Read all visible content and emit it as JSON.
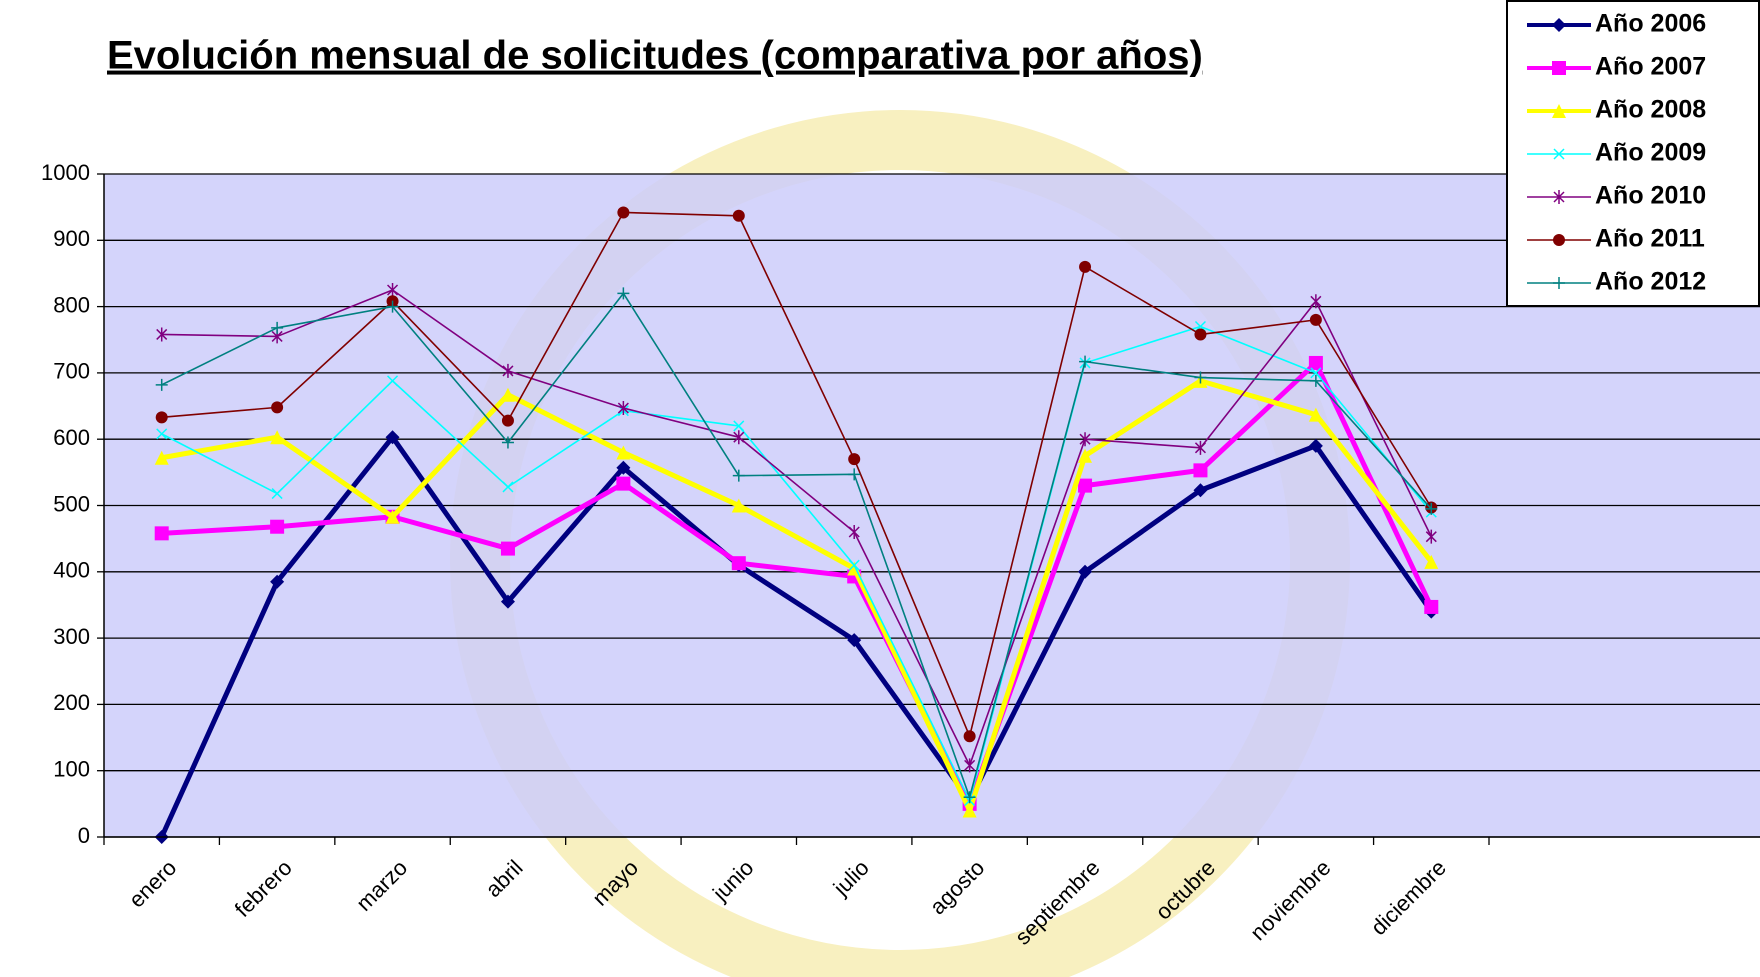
{
  "chart_data": {
    "type": "line",
    "title": "Evolución mensual de solicitudes (comparativa por años)",
    "categories": [
      "enero",
      "febrero",
      "marzo",
      "abril",
      "mayo",
      "junio",
      "julio",
      "agosto",
      "septiembre",
      "octubre",
      "noviembre",
      "diciembre"
    ],
    "series": [
      {
        "name": "Año 2006",
        "color": "#000080",
        "marker": "diamond",
        "line_width": 5,
        "values": [
          0,
          385,
          603,
          355,
          557,
          410,
          297,
          55,
          400,
          523,
          590,
          340
        ]
      },
      {
        "name": "Año 2007",
        "color": "#ff00ff",
        "marker": "square",
        "line_width": 5,
        "values": [
          458,
          468,
          483,
          435,
          533,
          413,
          393,
          50,
          530,
          553,
          715,
          347
        ]
      },
      {
        "name": "Año 2008",
        "color": "#ffff00",
        "marker": "triangle",
        "line_width": 5,
        "values": [
          572,
          603,
          483,
          667,
          580,
          500,
          405,
          40,
          575,
          688,
          637,
          415
        ]
      },
      {
        "name": "Año 2009",
        "color": "#00ffff",
        "marker": "x",
        "line_width": 1.6,
        "values": [
          608,
          518,
          688,
          528,
          643,
          620,
          410,
          55,
          715,
          770,
          700,
          490
        ]
      },
      {
        "name": "Año 2010",
        "color": "#800080",
        "marker": "star",
        "line_width": 1.6,
        "values": [
          758,
          755,
          825,
          703,
          647,
          603,
          460,
          108,
          600,
          587,
          808,
          453
        ]
      },
      {
        "name": "Año 2011",
        "color": "#800000",
        "marker": "circle",
        "line_width": 1.6,
        "values": [
          633,
          648,
          808,
          628,
          942,
          937,
          570,
          152,
          860,
          758,
          780,
          497
        ]
      },
      {
        "name": "Año 2012",
        "color": "#008080",
        "marker": "plus",
        "line_width": 1.6,
        "values": [
          682,
          768,
          800,
          595,
          820,
          545,
          547,
          60,
          717,
          693,
          688,
          495
        ]
      }
    ],
    "ylim": [
      0,
      1000
    ],
    "yticks": [
      0,
      100,
      200,
      300,
      400,
      500,
      600,
      700,
      800,
      900,
      1000
    ],
    "grid": true,
    "legend": "upper right",
    "plot_background": "#ccccfa"
  }
}
